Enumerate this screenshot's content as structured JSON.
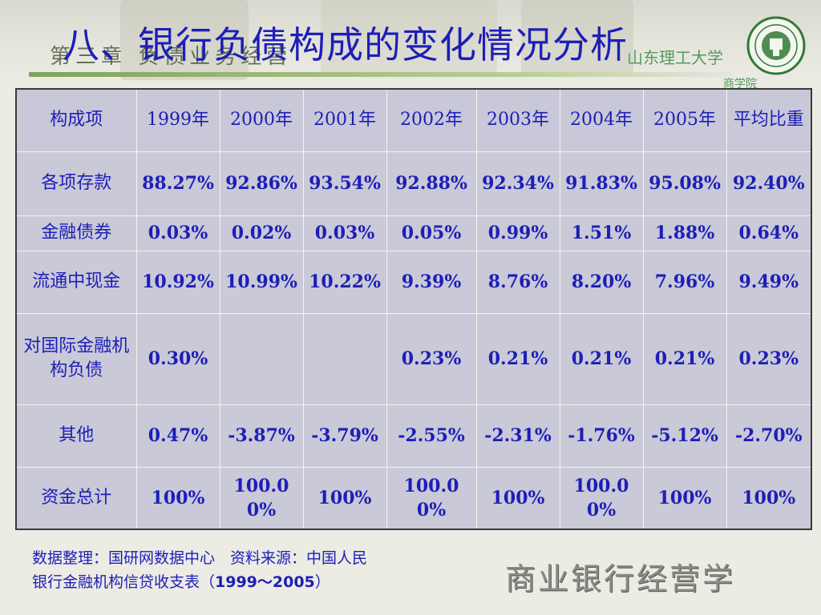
{
  "slide": {
    "title": "八、银行负债构成的变化情况分析",
    "chapter_label": "第三章 负债业务经营",
    "university": "山东理工大学",
    "university_sub": "商学院",
    "watermark": "商业银行经营学"
  },
  "table": {
    "headers": [
      "构成项",
      "1999年",
      "2000年",
      "2001年",
      "2002年",
      "2003年",
      "2004年",
      "2005年",
      "平均比重"
    ],
    "rows": [
      {
        "label": "各项存款",
        "cells": [
          "88.27%",
          "92.86%",
          "93.54%",
          "92.88%",
          "92.34%",
          "91.83%",
          "95.08%",
          "92.40%"
        ]
      },
      {
        "label": "金融债券",
        "cells": [
          "0.03%",
          "0.02%",
          "0.03%",
          "0.05%",
          "0.99%",
          "1.51%",
          "1.88%",
          "0.64%"
        ]
      },
      {
        "label": "流通中现金",
        "cells": [
          "10.92%",
          "10.99%",
          "10.22%",
          "9.39%",
          "8.76%",
          "8.20%",
          "7.96%",
          "9.49%"
        ]
      },
      {
        "label": "对国际金融机构负债",
        "cells": [
          "0.30%",
          "",
          "",
          "0.23%",
          "0.21%",
          "0.21%",
          "0.21%",
          "0.23%"
        ]
      },
      {
        "label": "其他",
        "cells": [
          "0.47%",
          "-3.87%",
          "-3.79%",
          "-2.55%",
          "-2.31%",
          "-1.76%",
          "-5.12%",
          "-2.70%"
        ]
      },
      {
        "label": "资金总计",
        "cells": [
          "100%",
          "100.00%",
          "100%",
          "100.00%",
          "100%",
          "100.00%",
          "100%",
          "100%"
        ]
      }
    ]
  },
  "footnote": {
    "line1": "数据整理：国研网数据中心　资料来源：中国人民",
    "line2_prefix": "银行金融机构信贷收支表（",
    "line2_years": "1999～2005",
    "line2_suffix": "）"
  },
  "colors": {
    "title_blue": "#1d1eb8",
    "table_bg": "#c9c9d7",
    "accent_green": "#7fa35c"
  }
}
